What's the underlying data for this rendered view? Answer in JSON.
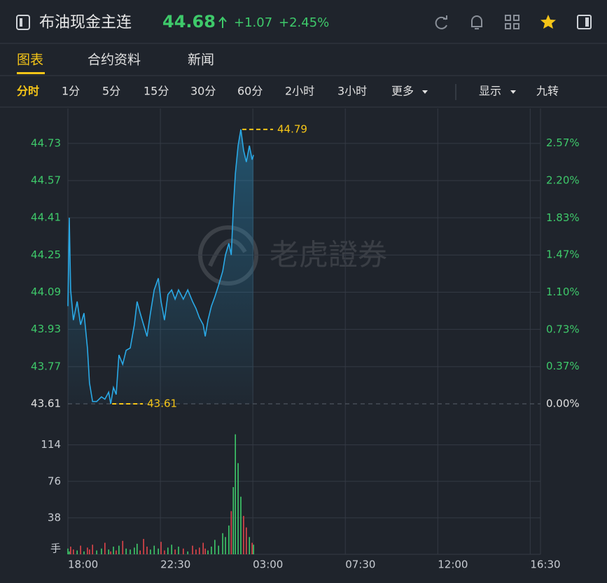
{
  "header": {
    "title": "布油现金主连",
    "price": "44.68",
    "change": "+1.07",
    "change_pct": "+2.45%"
  },
  "tabs": [
    "图表",
    "合约资料",
    "新闻"
  ],
  "intervals": [
    "分时",
    "1分",
    "5分",
    "15分",
    "30分",
    "60分",
    "2小时",
    "3小时",
    "更多"
  ],
  "options": [
    "显示",
    "九转"
  ],
  "watermark": "老虎證券",
  "chart_data": [
    {
      "type": "line",
      "color": "#2aa9e6",
      "x": [
        0,
        4,
        8,
        16,
        27,
        37,
        47,
        57,
        63,
        72,
        84,
        98,
        108,
        119,
        125,
        133,
        141,
        149,
        160,
        170,
        182,
        194,
        202,
        211,
        221,
        231,
        241,
        252,
        264,
        272,
        282,
        292,
        303,
        313,
        323,
        337,
        350,
        364,
        374,
        384,
        395,
        401,
        409,
        419,
        429,
        440,
        452,
        460,
        470,
        477,
        483,
        489,
        497,
        505,
        513,
        521,
        530,
        538,
        542
      ],
      "values": [
        44.03,
        44.41,
        44.1,
        43.97,
        44.05,
        43.95,
        44.0,
        43.85,
        43.7,
        43.62,
        43.62,
        43.64,
        43.63,
        43.66,
        43.61,
        43.68,
        43.65,
        43.82,
        43.78,
        43.84,
        43.85,
        43.95,
        44.05,
        44.0,
        43.95,
        43.9,
        44.0,
        44.1,
        44.15,
        44.05,
        43.97,
        44.08,
        44.1,
        44.06,
        44.1,
        44.06,
        44.1,
        44.05,
        44.02,
        43.98,
        43.95,
        43.9,
        43.97,
        44.03,
        44.07,
        44.12,
        44.18,
        44.25,
        44.3,
        44.25,
        44.45,
        44.6,
        44.72,
        44.79,
        44.7,
        44.65,
        44.72,
        44.66,
        44.68
      ],
      "xlim": [
        0,
        1380
      ],
      "ylim": [
        43.61,
        44.88
      ],
      "yticks": [
        43.61,
        43.77,
        43.93,
        44.09,
        44.25,
        44.41,
        44.57,
        44.73
      ],
      "y2lim": [
        0,
        2.91
      ],
      "y2ticks": [
        {
          "value": 0,
          "label": "0.00%"
        },
        {
          "value": 0.37,
          "label": "0.37%"
        },
        {
          "value": 0.73,
          "label": "0.73%"
        },
        {
          "value": 1.1,
          "label": "1.10%"
        },
        {
          "value": 1.47,
          "label": "1.47%"
        },
        {
          "value": 1.83,
          "label": "1.83%"
        },
        {
          "value": 2.2,
          "label": "2.20%"
        },
        {
          "value": 2.57,
          "label": "2.57%"
        }
      ],
      "annotations": [
        {
          "text": "44.79",
          "x": 505,
          "y": 44.79
        },
        {
          "text": "43.61",
          "x": 125,
          "y": 43.61
        }
      ],
      "grid": true
    },
    {
      "type": "bar",
      "ylabel": "手",
      "x": [
        0,
        4,
        8,
        16,
        27,
        37,
        47,
        57,
        63,
        72,
        84,
        98,
        108,
        119,
        125,
        133,
        141,
        149,
        160,
        170,
        182,
        194,
        202,
        211,
        221,
        231,
        241,
        252,
        264,
        272,
        282,
        292,
        303,
        313,
        323,
        337,
        350,
        364,
        374,
        384,
        395,
        401,
        409,
        419,
        429,
        440,
        452,
        460,
        470,
        477,
        483,
        489,
        497,
        505,
        513,
        521,
        530,
        538,
        542
      ],
      "values": [
        6,
        3,
        8,
        5,
        4,
        9,
        3,
        7,
        5,
        10,
        4,
        6,
        12,
        5,
        3,
        8,
        4,
        9,
        14,
        6,
        5,
        7,
        11,
        4,
        16,
        8,
        5,
        9,
        6,
        13,
        4,
        7,
        10,
        5,
        8,
        6,
        3,
        9,
        5,
        7,
        12,
        6,
        4,
        8,
        15,
        9,
        22,
        18,
        30,
        45,
        70,
        125,
        95,
        60,
        40,
        28,
        18,
        12,
        10
      ],
      "up_color": "#3ec96a",
      "down_color": "#e0454a",
      "xlim": [
        0,
        1380
      ],
      "xticks": [
        {
          "value": 0,
          "label": "18:00"
        },
        {
          "value": 270,
          "label": "22:30"
        },
        {
          "value": 540,
          "label": "03:00"
        },
        {
          "value": 810,
          "label": "07:30"
        },
        {
          "value": 1080,
          "label": "12:00"
        },
        {
          "value": 1350,
          "label": "16:30"
        }
      ],
      "ylim": [
        0,
        140
      ],
      "yticks": [
        38,
        76,
        114
      ]
    }
  ]
}
